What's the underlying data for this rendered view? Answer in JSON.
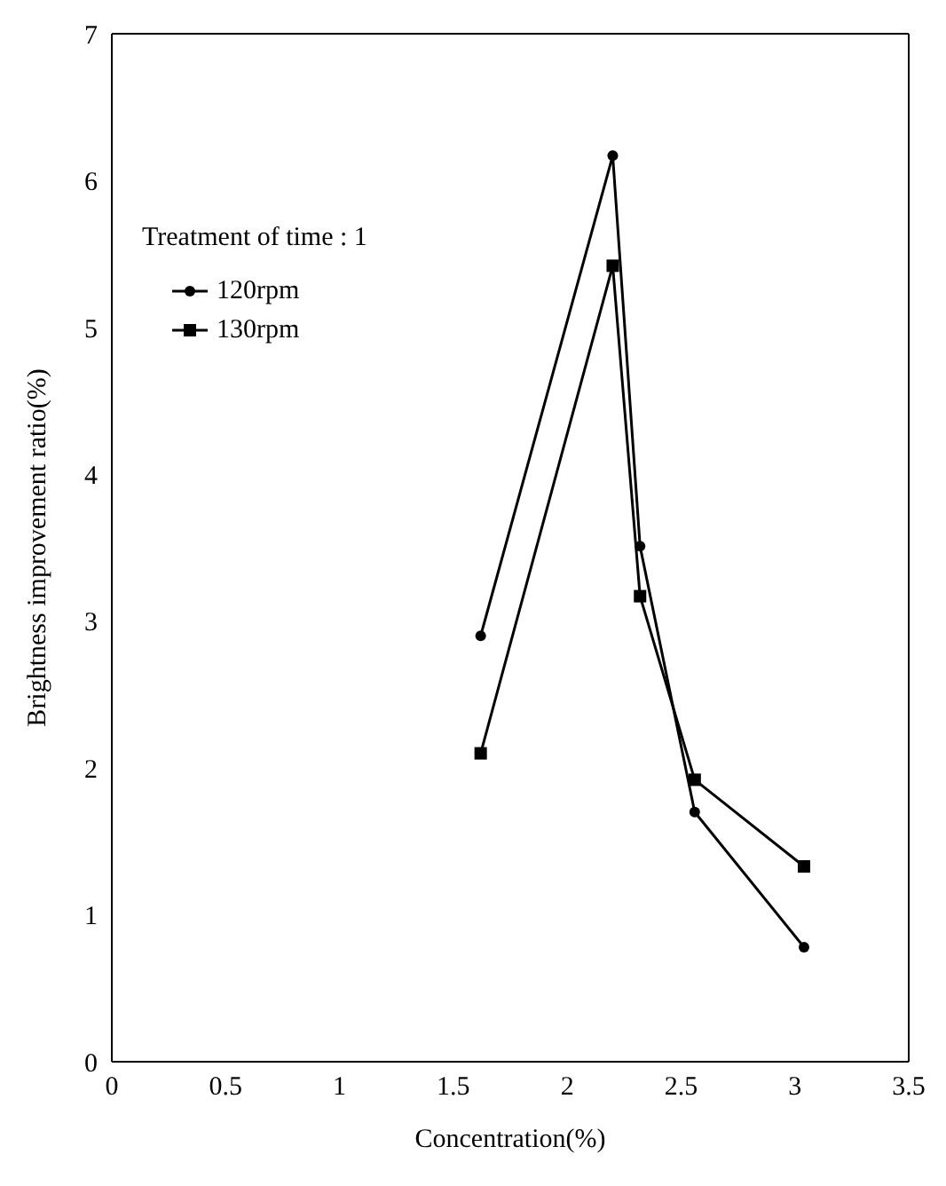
{
  "chart_data": {
    "type": "line",
    "xlabel": "Concentration(%)",
    "ylabel": "Brightness improvement ratio(%)",
    "legend_title": "Treatment of time : 1",
    "x": [
      1.62,
      2.2,
      2.32,
      2.56,
      3.04
    ],
    "series": [
      {
        "name": "120rpm",
        "color": "#000000",
        "marker": "circle",
        "values": [
          2.9,
          6.17,
          3.51,
          1.7,
          0.78
        ]
      },
      {
        "name": "130rpm",
        "color": "#000000",
        "marker": "square",
        "values": [
          2.1,
          5.42,
          3.17,
          1.92,
          1.33
        ]
      }
    ],
    "xlim": [
      0,
      3.5
    ],
    "xticks": [
      0,
      0.5,
      1,
      1.5,
      2,
      2.5,
      3,
      3.5
    ],
    "ylim": [
      0,
      7
    ],
    "yticks": [
      0,
      1,
      2,
      3,
      4,
      5,
      6,
      7
    ],
    "legend": "top left",
    "line_style": "solid"
  }
}
